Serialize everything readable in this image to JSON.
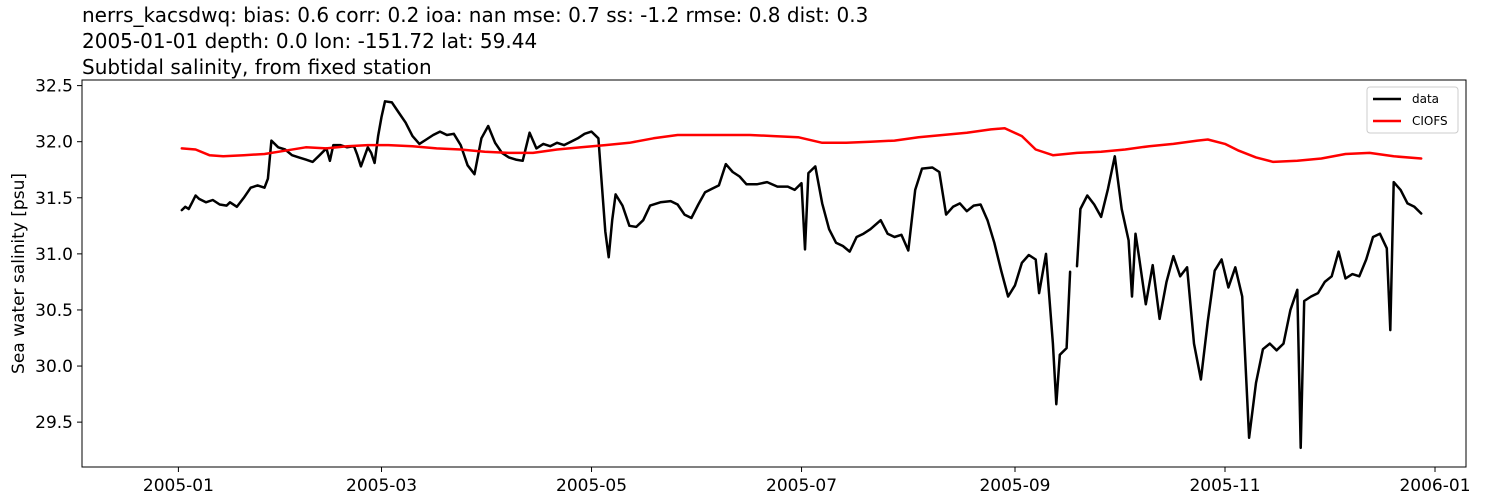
{
  "title": {
    "line1": "nerrs_kacsdwq: bias: 0.6  corr: 0.2  ioa: nan  mse: 0.7  ss: -1.2  rmse: 0.8  dist: 0.3",
    "line2": "2005-01-01 depth: 0.0 lon: -151.72 lat: 59.44",
    "line3": "Subtidal salinity, from fixed station"
  },
  "chart_data": {
    "type": "line",
    "ylabel": "Sea water salinity [psu]",
    "xlabel": "",
    "x_range": [
      "2004-12-04",
      "2006-01-10"
    ],
    "ylim": [
      29.1,
      32.55
    ],
    "x_ticks": [
      "2005-01",
      "2005-03",
      "2005-05",
      "2005-07",
      "2005-09",
      "2005-11",
      "2006-01"
    ],
    "y_ticks": [
      29.5,
      30.0,
      30.5,
      31.0,
      31.5,
      32.0,
      32.5
    ],
    "grid": false,
    "legend": "top-right",
    "series": [
      {
        "name": "data",
        "color": "#000000",
        "points": [
          [
            "2005-01-02",
            31.39
          ],
          [
            "2005-01-03",
            31.42
          ],
          [
            "2005-01-04",
            31.4
          ],
          [
            "2005-01-05",
            31.46
          ],
          [
            "2005-01-06",
            31.52
          ],
          [
            "2005-01-07",
            31.49
          ],
          [
            "2005-01-09",
            31.46
          ],
          [
            "2005-01-11",
            31.48
          ],
          [
            "2005-01-13",
            31.44
          ],
          [
            "2005-01-15",
            31.43
          ],
          [
            "2005-01-16",
            31.46
          ],
          [
            "2005-01-18",
            31.42
          ],
          [
            "2005-01-20",
            31.5
          ],
          [
            "2005-01-22",
            31.59
          ],
          [
            "2005-01-24",
            31.61
          ],
          [
            "2005-01-26",
            31.59
          ],
          [
            "2005-01-27",
            31.67
          ],
          [
            "2005-01-28",
            32.01
          ],
          [
            "2005-01-30",
            31.95
          ],
          [
            "2005-02-01",
            31.93
          ],
          [
            "2005-02-03",
            31.88
          ],
          [
            "2005-02-05",
            31.86
          ],
          [
            "2005-02-07",
            31.84
          ],
          [
            "2005-02-09",
            31.82
          ],
          [
            "2005-02-11",
            31.88
          ],
          [
            "2005-02-13",
            31.94
          ],
          [
            "2005-02-14",
            31.83
          ],
          [
            "2005-02-15",
            31.97
          ],
          [
            "2005-02-17",
            31.97
          ],
          [
            "2005-02-19",
            31.95
          ],
          [
            "2005-02-21",
            31.96
          ],
          [
            "2005-02-22",
            31.88
          ],
          [
            "2005-02-23",
            31.78
          ],
          [
            "2005-02-25",
            31.95
          ],
          [
            "2005-02-26",
            31.9
          ],
          [
            "2005-02-27",
            31.81
          ],
          [
            "2005-02-28",
            32.05
          ],
          [
            "2005-03-01",
            32.22
          ],
          [
            "2005-03-02",
            32.36
          ],
          [
            "2005-03-04",
            32.35
          ],
          [
            "2005-03-06",
            32.26
          ],
          [
            "2005-03-08",
            32.17
          ],
          [
            "2005-03-10",
            32.05
          ],
          [
            "2005-03-12",
            31.98
          ],
          [
            "2005-03-14",
            32.02
          ],
          [
            "2005-03-16",
            32.06
          ],
          [
            "2005-03-18",
            32.09
          ],
          [
            "2005-03-20",
            32.06
          ],
          [
            "2005-03-22",
            32.07
          ],
          [
            "2005-03-24",
            31.97
          ],
          [
            "2005-03-26",
            31.79
          ],
          [
            "2005-03-28",
            31.71
          ],
          [
            "2005-03-30",
            32.03
          ],
          [
            "2005-04-01",
            32.14
          ],
          [
            "2005-04-03",
            31.99
          ],
          [
            "2005-04-05",
            31.9
          ],
          [
            "2005-04-07",
            31.86
          ],
          [
            "2005-04-09",
            31.84
          ],
          [
            "2005-04-11",
            31.83
          ],
          [
            "2005-04-13",
            32.08
          ],
          [
            "2005-04-15",
            31.94
          ],
          [
            "2005-04-17",
            31.98
          ],
          [
            "2005-04-19",
            31.96
          ],
          [
            "2005-04-21",
            31.99
          ],
          [
            "2005-04-23",
            31.97
          ],
          [
            "2005-04-25",
            32.0
          ],
          [
            "2005-04-27",
            32.03
          ],
          [
            "2005-04-29",
            32.07
          ],
          [
            "2005-05-01",
            32.09
          ],
          [
            "2005-05-03",
            32.03
          ],
          [
            "2005-05-05",
            31.2
          ],
          [
            "2005-05-06",
            30.97
          ],
          [
            "2005-05-07",
            31.3
          ],
          [
            "2005-05-08",
            31.53
          ],
          [
            "2005-05-10",
            31.43
          ],
          [
            "2005-05-12",
            31.25
          ],
          [
            "2005-05-14",
            31.24
          ],
          [
            "2005-05-16",
            31.3
          ],
          [
            "2005-05-18",
            31.43
          ],
          [
            "2005-05-21",
            31.46
          ],
          [
            "2005-05-24",
            31.47
          ],
          [
            "2005-05-26",
            31.44
          ],
          [
            "2005-05-28",
            31.35
          ],
          [
            "2005-05-30",
            31.32
          ],
          [
            "2005-06-01",
            31.44
          ],
          [
            "2005-06-03",
            31.55
          ],
          [
            "2005-06-05",
            31.58
          ],
          [
            "2005-06-07",
            31.61
          ],
          [
            "2005-06-09",
            31.8
          ],
          [
            "2005-06-11",
            31.73
          ],
          [
            "2005-06-13",
            31.69
          ],
          [
            "2005-06-15",
            31.62
          ],
          [
            "2005-06-18",
            31.62
          ],
          [
            "2005-06-21",
            31.64
          ],
          [
            "2005-06-24",
            31.6
          ],
          [
            "2005-06-27",
            31.6
          ],
          [
            "2005-06-29",
            31.57
          ],
          [
            "2005-07-01",
            31.63
          ],
          [
            "2005-07-02",
            31.04
          ],
          [
            "2005-07-03",
            31.72
          ],
          [
            "2005-07-05",
            31.78
          ],
          [
            "2005-07-07",
            31.45
          ],
          [
            "2005-07-09",
            31.22
          ],
          [
            "2005-07-11",
            31.1
          ],
          [
            "2005-07-13",
            31.07
          ],
          [
            "2005-07-15",
            31.02
          ],
          [
            "2005-07-17",
            31.15
          ],
          [
            "2005-07-19",
            31.18
          ],
          [
            "2005-07-21",
            31.22
          ],
          [
            "2005-07-24",
            31.3
          ],
          [
            "2005-07-26",
            31.18
          ],
          [
            "2005-07-28",
            31.15
          ],
          [
            "2005-07-30",
            31.17
          ],
          [
            "2005-08-01",
            31.03
          ],
          [
            "2005-08-03",
            31.57
          ],
          [
            "2005-08-05",
            31.76
          ],
          [
            "2005-08-08",
            31.77
          ],
          [
            "2005-08-10",
            31.73
          ],
          [
            "2005-08-12",
            31.35
          ],
          [
            "2005-08-14",
            31.42
          ],
          [
            "2005-08-16",
            31.45
          ],
          [
            "2005-08-18",
            31.38
          ],
          [
            "2005-08-20",
            31.43
          ],
          [
            "2005-08-22",
            31.44
          ],
          [
            "2005-08-24",
            31.3
          ],
          [
            "2005-08-26",
            31.1
          ],
          [
            "2005-08-28",
            30.85
          ],
          [
            "2005-08-30",
            30.62
          ],
          [
            "2005-09-01",
            30.72
          ],
          [
            "2005-09-03",
            30.92
          ],
          [
            "2005-09-05",
            30.99
          ],
          [
            "2005-09-07",
            30.95
          ],
          [
            "2005-09-08",
            30.65
          ],
          [
            "2005-09-10",
            31.0
          ],
          [
            "2005-09-12",
            30.2
          ],
          [
            "2005-09-13",
            29.66
          ],
          [
            "2005-09-14",
            30.1
          ],
          [
            "2005-09-16",
            30.16
          ],
          [
            "2005-09-17",
            30.84
          ],
          null,
          [
            "2005-09-19",
            30.89
          ],
          [
            "2005-09-20",
            31.4
          ],
          [
            "2005-09-22",
            31.52
          ],
          [
            "2005-09-24",
            31.44
          ],
          [
            "2005-09-26",
            31.33
          ],
          [
            "2005-09-28",
            31.58
          ],
          [
            "2005-09-30",
            31.87
          ],
          [
            "2005-10-02",
            31.4
          ],
          [
            "2005-10-04",
            31.12
          ],
          [
            "2005-10-05",
            30.62
          ],
          [
            "2005-10-06",
            31.18
          ],
          [
            "2005-10-07",
            30.98
          ],
          [
            "2005-10-09",
            30.55
          ],
          [
            "2005-10-11",
            30.9
          ],
          [
            "2005-10-13",
            30.42
          ],
          [
            "2005-10-15",
            30.75
          ],
          [
            "2005-10-17",
            30.98
          ],
          [
            "2005-10-19",
            30.8
          ],
          [
            "2005-10-21",
            30.88
          ],
          [
            "2005-10-23",
            30.2
          ],
          [
            "2005-10-25",
            29.88
          ],
          [
            "2005-10-27",
            30.4
          ],
          [
            "2005-10-29",
            30.85
          ],
          [
            "2005-10-31",
            30.95
          ],
          [
            "2005-11-02",
            30.7
          ],
          [
            "2005-11-04",
            30.88
          ],
          [
            "2005-11-06",
            30.62
          ],
          [
            "2005-11-08",
            29.36
          ],
          [
            "2005-11-10",
            29.85
          ],
          [
            "2005-11-12",
            30.15
          ],
          [
            "2005-11-14",
            30.2
          ],
          [
            "2005-11-16",
            30.14
          ],
          [
            "2005-11-18",
            30.2
          ],
          [
            "2005-11-20",
            30.5
          ],
          [
            "2005-11-22",
            30.68
          ],
          [
            "2005-11-23",
            29.27
          ],
          [
            "2005-11-24",
            30.58
          ],
          [
            "2005-11-26",
            30.62
          ],
          [
            "2005-11-28",
            30.65
          ],
          [
            "2005-11-30",
            30.75
          ],
          [
            "2005-12-02",
            30.8
          ],
          [
            "2005-12-04",
            31.02
          ],
          [
            "2005-12-06",
            30.78
          ],
          [
            "2005-12-08",
            30.82
          ],
          [
            "2005-12-10",
            30.8
          ],
          [
            "2005-12-12",
            30.95
          ],
          [
            "2005-12-14",
            31.15
          ],
          [
            "2005-12-16",
            31.18
          ],
          [
            "2005-12-18",
            31.05
          ],
          [
            "2005-12-19",
            30.32
          ],
          [
            "2005-12-20",
            31.64
          ],
          [
            "2005-12-22",
            31.57
          ],
          [
            "2005-12-24",
            31.45
          ],
          [
            "2005-12-26",
            31.42
          ],
          [
            "2005-12-28",
            31.36
          ]
        ]
      },
      {
        "name": "CIOFS",
        "color": "#ff0000",
        "points": [
          [
            "2005-01-02",
            31.94
          ],
          [
            "2005-01-06",
            31.93
          ],
          [
            "2005-01-10",
            31.88
          ],
          [
            "2005-01-14",
            31.87
          ],
          [
            "2005-01-20",
            31.88
          ],
          [
            "2005-01-26",
            31.89
          ],
          [
            "2005-02-01",
            31.92
          ],
          [
            "2005-02-07",
            31.95
          ],
          [
            "2005-02-13",
            31.94
          ],
          [
            "2005-02-19",
            31.96
          ],
          [
            "2005-02-25",
            31.97
          ],
          [
            "2005-03-03",
            31.97
          ],
          [
            "2005-03-10",
            31.96
          ],
          [
            "2005-03-17",
            31.94
          ],
          [
            "2005-03-24",
            31.93
          ],
          [
            "2005-03-31",
            31.91
          ],
          [
            "2005-04-07",
            31.9
          ],
          [
            "2005-04-14",
            31.9
          ],
          [
            "2005-04-21",
            31.93
          ],
          [
            "2005-04-28",
            31.95
          ],
          [
            "2005-05-05",
            31.97
          ],
          [
            "2005-05-12",
            31.99
          ],
          [
            "2005-05-19",
            32.03
          ],
          [
            "2005-05-26",
            32.06
          ],
          [
            "2005-06-02",
            32.06
          ],
          [
            "2005-06-09",
            32.06
          ],
          [
            "2005-06-16",
            32.06
          ],
          [
            "2005-06-23",
            32.05
          ],
          [
            "2005-06-30",
            32.04
          ],
          [
            "2005-07-07",
            31.99
          ],
          [
            "2005-07-14",
            31.99
          ],
          [
            "2005-07-21",
            32.0
          ],
          [
            "2005-07-28",
            32.01
          ],
          [
            "2005-08-04",
            32.04
          ],
          [
            "2005-08-11",
            32.06
          ],
          [
            "2005-08-18",
            32.08
          ],
          [
            "2005-08-25",
            32.11
          ],
          [
            "2005-08-29",
            32.12
          ],
          [
            "2005-09-03",
            32.05
          ],
          [
            "2005-09-07",
            31.93
          ],
          [
            "2005-09-12",
            31.88
          ],
          [
            "2005-09-19",
            31.9
          ],
          [
            "2005-09-26",
            31.91
          ],
          [
            "2005-10-03",
            31.93
          ],
          [
            "2005-10-10",
            31.96
          ],
          [
            "2005-10-17",
            31.98
          ],
          [
            "2005-10-24",
            32.01
          ],
          [
            "2005-10-27",
            32.02
          ],
          [
            "2005-11-01",
            31.98
          ],
          [
            "2005-11-05",
            31.92
          ],
          [
            "2005-11-10",
            31.86
          ],
          [
            "2005-11-15",
            31.82
          ],
          [
            "2005-11-22",
            31.83
          ],
          [
            "2005-11-29",
            31.85
          ],
          [
            "2005-12-06",
            31.89
          ],
          [
            "2005-12-13",
            31.9
          ],
          [
            "2005-12-20",
            31.87
          ],
          [
            "2005-12-28",
            31.85
          ]
        ]
      }
    ]
  }
}
